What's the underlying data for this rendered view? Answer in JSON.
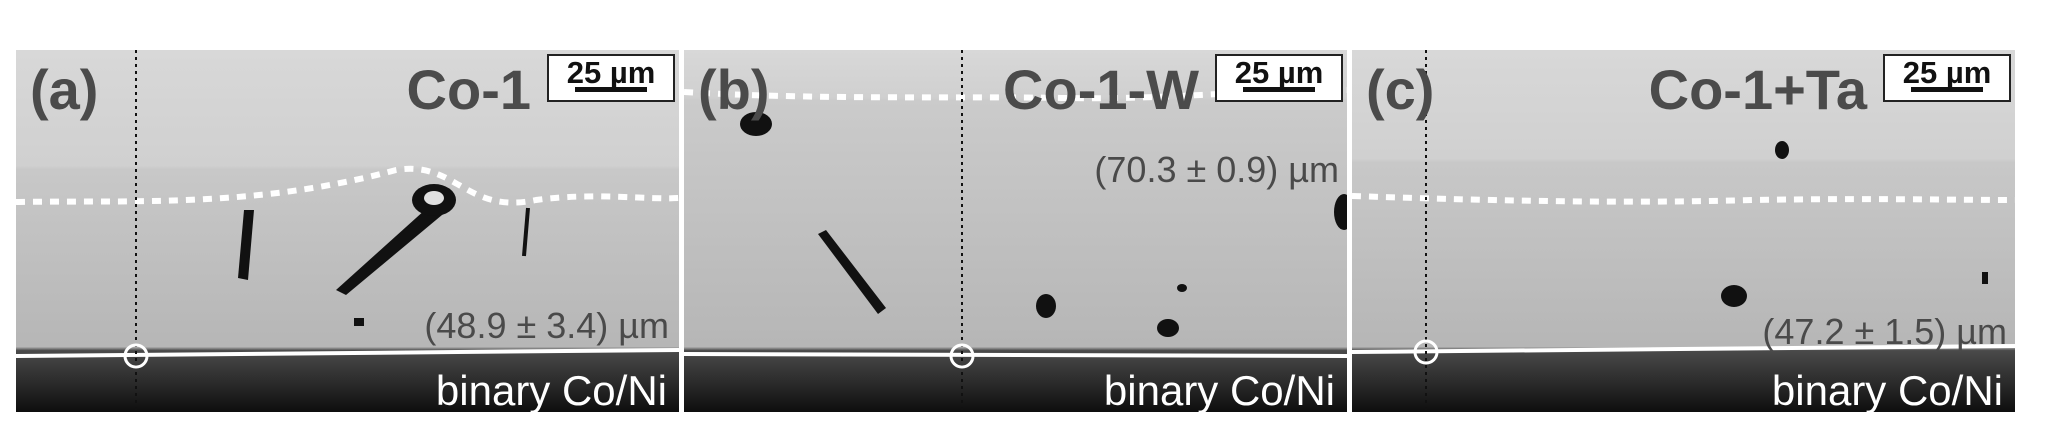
{
  "panels": [
    {
      "letter": "(a)",
      "title": "Co-1",
      "scale": "25 µm",
      "measurement": "(48.9 ± 3.4) µm",
      "bottom_label": "binary Co/Ni"
    },
    {
      "letter": "(b)",
      "title": "Co-1-W",
      "scale": "25 µm",
      "measurement": "(70.3 ± 0.9) µm",
      "bottom_label": "binary Co/Ni"
    },
    {
      "letter": "(c)",
      "title": "Co-1+Ta",
      "scale": "25 µm",
      "measurement": "(47.2 ± 1.5) µm",
      "bottom_label": "binary Co/Ni"
    }
  ]
}
